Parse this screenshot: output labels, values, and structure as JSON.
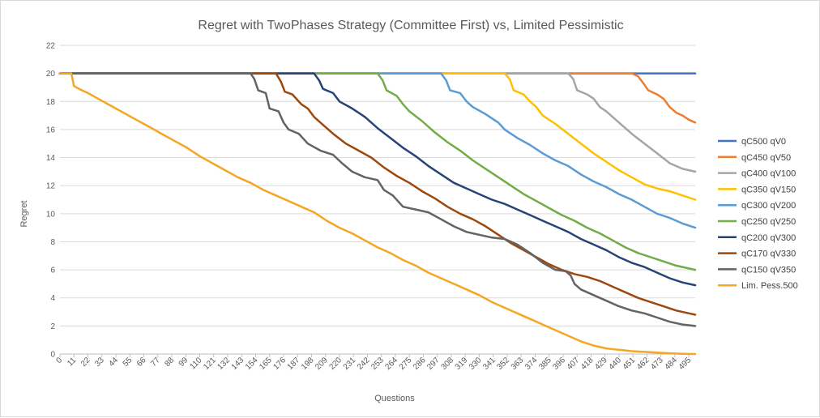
{
  "chart_data": {
    "type": "line",
    "title": "Regret with TwoPhases Strategy (Committee First) vs, Limited Pessimistic",
    "xlabel": "Questions",
    "ylabel": "Regret",
    "xlim": [
      0,
      500
    ],
    "ylim": [
      0,
      22
    ],
    "y_ticks": [
      0,
      2,
      4,
      6,
      8,
      10,
      12,
      14,
      16,
      18,
      20,
      22
    ],
    "x_ticks": [
      0,
      11,
      22,
      33,
      44,
      55,
      66,
      77,
      88,
      99,
      110,
      121,
      132,
      143,
      154,
      165,
      176,
      187,
      198,
      209,
      220,
      231,
      242,
      253,
      264,
      275,
      286,
      297,
      308,
      319,
      330,
      341,
      352,
      363,
      374,
      385,
      396,
      407,
      418,
      429,
      440,
      451,
      462,
      473,
      484,
      495
    ],
    "grid": "horizontal",
    "legend": "right",
    "series": [
      {
        "name": "qC500 qV0",
        "color": "#4472c4",
        "points": [
          [
            0,
            20
          ],
          [
            500,
            20
          ]
        ]
      },
      {
        "name": "qC450 qV50",
        "color": "#ed7d31",
        "points": [
          [
            0,
            20
          ],
          [
            450,
            20
          ],
          [
            455,
            19.8
          ],
          [
            460,
            19.2
          ],
          [
            463,
            18.8
          ],
          [
            470,
            18.5
          ],
          [
            475,
            18.2
          ],
          [
            480,
            17.6
          ],
          [
            485,
            17.2
          ],
          [
            490,
            17.0
          ],
          [
            495,
            16.7
          ],
          [
            500,
            16.5
          ]
        ]
      },
      {
        "name": "qC400 qV100",
        "color": "#a5a5a5",
        "points": [
          [
            0,
            20
          ],
          [
            400,
            20
          ],
          [
            404,
            19.6
          ],
          [
            407,
            18.8
          ],
          [
            415,
            18.5
          ],
          [
            420,
            18.2
          ],
          [
            425,
            17.6
          ],
          [
            430,
            17.3
          ],
          [
            440,
            16.5
          ],
          [
            450,
            15.7
          ],
          [
            460,
            15.0
          ],
          [
            470,
            14.3
          ],
          [
            480,
            13.6
          ],
          [
            490,
            13.2
          ],
          [
            500,
            13.0
          ]
        ]
      },
      {
        "name": "qC350 qV150",
        "color": "#ffc000",
        "points": [
          [
            0,
            20
          ],
          [
            350,
            20
          ],
          [
            354,
            19.6
          ],
          [
            357,
            18.8
          ],
          [
            365,
            18.5
          ],
          [
            370,
            18.0
          ],
          [
            375,
            17.6
          ],
          [
            380,
            17.0
          ],
          [
            390,
            16.4
          ],
          [
            400,
            15.7
          ],
          [
            410,
            15.0
          ],
          [
            420,
            14.3
          ],
          [
            430,
            13.7
          ],
          [
            440,
            13.1
          ],
          [
            450,
            12.6
          ],
          [
            460,
            12.1
          ],
          [
            470,
            11.8
          ],
          [
            480,
            11.6
          ],
          [
            490,
            11.3
          ],
          [
            500,
            11.0
          ]
        ]
      },
      {
        "name": "qC300 qV200",
        "color": "#5b9bd5",
        "points": [
          [
            0,
            20
          ],
          [
            300,
            20
          ],
          [
            304,
            19.5
          ],
          [
            307,
            18.8
          ],
          [
            315,
            18.6
          ],
          [
            320,
            18.0
          ],
          [
            325,
            17.6
          ],
          [
            335,
            17.1
          ],
          [
            345,
            16.5
          ],
          [
            350,
            16.0
          ],
          [
            360,
            15.4
          ],
          [
            370,
            14.9
          ],
          [
            380,
            14.3
          ],
          [
            390,
            13.8
          ],
          [
            400,
            13.4
          ],
          [
            410,
            12.8
          ],
          [
            420,
            12.3
          ],
          [
            430,
            11.9
          ],
          [
            440,
            11.4
          ],
          [
            450,
            11.0
          ],
          [
            460,
            10.5
          ],
          [
            470,
            10.0
          ],
          [
            480,
            9.7
          ],
          [
            490,
            9.3
          ],
          [
            500,
            9.0
          ]
        ]
      },
      {
        "name": "qC250 qV250",
        "color": "#70ad47",
        "points": [
          [
            0,
            20
          ],
          [
            250,
            20
          ],
          [
            254,
            19.5
          ],
          [
            257,
            18.8
          ],
          [
            265,
            18.4
          ],
          [
            270,
            17.8
          ],
          [
            275,
            17.3
          ],
          [
            285,
            16.6
          ],
          [
            295,
            15.8
          ],
          [
            305,
            15.1
          ],
          [
            315,
            14.5
          ],
          [
            325,
            13.8
          ],
          [
            335,
            13.2
          ],
          [
            345,
            12.6
          ],
          [
            355,
            12.0
          ],
          [
            365,
            11.4
          ],
          [
            375,
            10.9
          ],
          [
            385,
            10.4
          ],
          [
            395,
            9.9
          ],
          [
            405,
            9.5
          ],
          [
            415,
            9.0
          ],
          [
            425,
            8.6
          ],
          [
            435,
            8.1
          ],
          [
            445,
            7.6
          ],
          [
            455,
            7.2
          ],
          [
            465,
            6.9
          ],
          [
            475,
            6.6
          ],
          [
            485,
            6.3
          ],
          [
            495,
            6.1
          ],
          [
            500,
            6.0
          ]
        ]
      },
      {
        "name": "qC200 qV300",
        "color": "#264478",
        "points": [
          [
            0,
            20
          ],
          [
            200,
            20
          ],
          [
            204,
            19.5
          ],
          [
            207,
            18.9
          ],
          [
            215,
            18.6
          ],
          [
            220,
            18.0
          ],
          [
            230,
            17.5
          ],
          [
            240,
            16.9
          ],
          [
            250,
            16.1
          ],
          [
            260,
            15.4
          ],
          [
            270,
            14.7
          ],
          [
            280,
            14.1
          ],
          [
            290,
            13.4
          ],
          [
            300,
            12.8
          ],
          [
            310,
            12.2
          ],
          [
            320,
            11.8
          ],
          [
            330,
            11.4
          ],
          [
            340,
            11.0
          ],
          [
            350,
            10.7
          ],
          [
            360,
            10.3
          ],
          [
            370,
            9.9
          ],
          [
            380,
            9.5
          ],
          [
            390,
            9.1
          ],
          [
            400,
            8.7
          ],
          [
            410,
            8.2
          ],
          [
            420,
            7.8
          ],
          [
            430,
            7.4
          ],
          [
            440,
            6.9
          ],
          [
            450,
            6.5
          ],
          [
            460,
            6.2
          ],
          [
            470,
            5.8
          ],
          [
            480,
            5.4
          ],
          [
            490,
            5.1
          ],
          [
            500,
            4.9
          ]
        ]
      },
      {
        "name": "qC170 qV330",
        "color": "#9e480e",
        "points": [
          [
            0,
            20
          ],
          [
            170,
            20
          ],
          [
            174,
            19.4
          ],
          [
            177,
            18.7
          ],
          [
            183,
            18.5
          ],
          [
            190,
            17.8
          ],
          [
            195,
            17.5
          ],
          [
            200,
            16.9
          ],
          [
            205,
            16.5
          ],
          [
            215,
            15.7
          ],
          [
            225,
            15.0
          ],
          [
            235,
            14.5
          ],
          [
            245,
            14.0
          ],
          [
            255,
            13.3
          ],
          [
            265,
            12.7
          ],
          [
            275,
            12.2
          ],
          [
            285,
            11.6
          ],
          [
            295,
            11.1
          ],
          [
            305,
            10.5
          ],
          [
            315,
            10.0
          ],
          [
            325,
            9.6
          ],
          [
            335,
            9.1
          ],
          [
            345,
            8.5
          ],
          [
            355,
            7.9
          ],
          [
            365,
            7.4
          ],
          [
            375,
            6.9
          ],
          [
            385,
            6.4
          ],
          [
            395,
            6.0
          ],
          [
            405,
            5.7
          ],
          [
            415,
            5.5
          ],
          [
            425,
            5.2
          ],
          [
            435,
            4.8
          ],
          [
            445,
            4.4
          ],
          [
            455,
            4.0
          ],
          [
            465,
            3.7
          ],
          [
            475,
            3.4
          ],
          [
            485,
            3.1
          ],
          [
            495,
            2.9
          ],
          [
            500,
            2.8
          ]
        ]
      },
      {
        "name": "qC150 qV350",
        "color": "#636363",
        "points": [
          [
            0,
            20
          ],
          [
            150,
            20
          ],
          [
            153,
            19.6
          ],
          [
            156,
            18.8
          ],
          [
            162,
            18.6
          ],
          [
            165,
            17.5
          ],
          [
            172,
            17.3
          ],
          [
            176,
            16.5
          ],
          [
            180,
            16.0
          ],
          [
            188,
            15.7
          ],
          [
            195,
            15.0
          ],
          [
            205,
            14.5
          ],
          [
            215,
            14.2
          ],
          [
            222,
            13.6
          ],
          [
            230,
            13.0
          ],
          [
            240,
            12.6
          ],
          [
            250,
            12.4
          ],
          [
            255,
            11.7
          ],
          [
            262,
            11.3
          ],
          [
            270,
            10.5
          ],
          [
            280,
            10.3
          ],
          [
            290,
            10.1
          ],
          [
            300,
            9.6
          ],
          [
            310,
            9.1
          ],
          [
            320,
            8.7
          ],
          [
            330,
            8.5
          ],
          [
            340,
            8.3
          ],
          [
            350,
            8.2
          ],
          [
            360,
            7.8
          ],
          [
            370,
            7.2
          ],
          [
            380,
            6.5
          ],
          [
            390,
            6.0
          ],
          [
            398,
            5.9
          ],
          [
            402,
            5.6
          ],
          [
            405,
            5.0
          ],
          [
            410,
            4.6
          ],
          [
            420,
            4.2
          ],
          [
            430,
            3.8
          ],
          [
            440,
            3.4
          ],
          [
            450,
            3.1
          ],
          [
            460,
            2.9
          ],
          [
            470,
            2.6
          ],
          [
            480,
            2.3
          ],
          [
            490,
            2.1
          ],
          [
            500,
            2.0
          ]
        ]
      },
      {
        "name": "Lim. Pess.500",
        "color": "#f5a623",
        "points": [
          [
            0,
            20
          ],
          [
            9,
            20
          ],
          [
            11,
            19.1
          ],
          [
            15,
            18.9
          ],
          [
            22,
            18.6
          ],
          [
            30,
            18.2
          ],
          [
            40,
            17.7
          ],
          [
            50,
            17.2
          ],
          [
            60,
            16.7
          ],
          [
            70,
            16.2
          ],
          [
            80,
            15.7
          ],
          [
            90,
            15.2
          ],
          [
            100,
            14.7
          ],
          [
            110,
            14.1
          ],
          [
            120,
            13.6
          ],
          [
            130,
            13.1
          ],
          [
            140,
            12.6
          ],
          [
            150,
            12.2
          ],
          [
            160,
            11.7
          ],
          [
            170,
            11.3
          ],
          [
            180,
            10.9
          ],
          [
            190,
            10.5
          ],
          [
            200,
            10.1
          ],
          [
            210,
            9.5
          ],
          [
            220,
            9.0
          ],
          [
            230,
            8.6
          ],
          [
            240,
            8.1
          ],
          [
            250,
            7.6
          ],
          [
            260,
            7.2
          ],
          [
            270,
            6.7
          ],
          [
            280,
            6.3
          ],
          [
            290,
            5.8
          ],
          [
            300,
            5.4
          ],
          [
            310,
            5.0
          ],
          [
            320,
            4.6
          ],
          [
            330,
            4.2
          ],
          [
            340,
            3.7
          ],
          [
            350,
            3.3
          ],
          [
            360,
            2.9
          ],
          [
            370,
            2.5
          ],
          [
            380,
            2.1
          ],
          [
            390,
            1.7
          ],
          [
            400,
            1.3
          ],
          [
            410,
            0.9
          ],
          [
            420,
            0.6
          ],
          [
            430,
            0.4
          ],
          [
            440,
            0.3
          ],
          [
            450,
            0.2
          ],
          [
            460,
            0.15
          ],
          [
            470,
            0.1
          ],
          [
            480,
            0.05
          ],
          [
            490,
            0.02
          ],
          [
            500,
            0.0
          ]
        ]
      }
    ]
  }
}
